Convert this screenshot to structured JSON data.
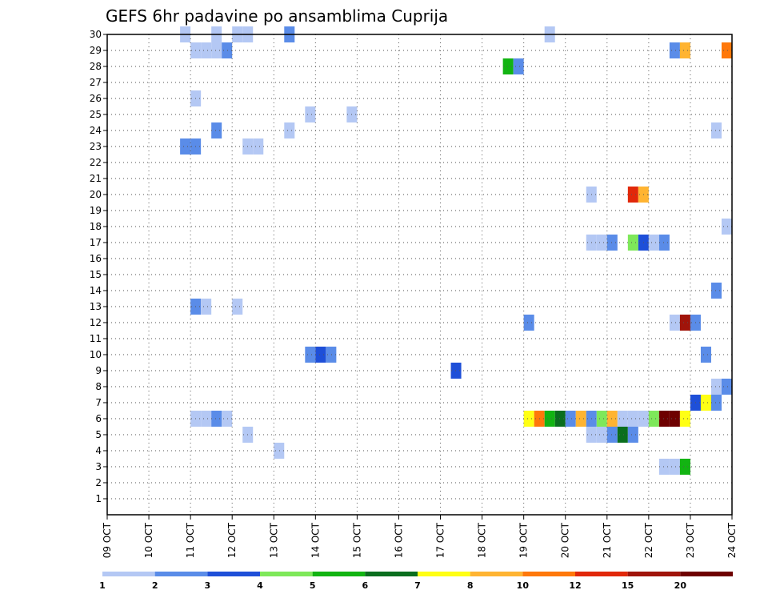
{
  "chart_data": {
    "type": "heatmap",
    "title": "GEFS 6hr padavine po ansamblima Cuprija",
    "xlabel": "",
    "ylabel": "",
    "x_tick_labels": [
      "09 OCT",
      "10 OCT",
      "11 OCT",
      "12 OCT",
      "13 OCT",
      "14 OCT",
      "15 OCT",
      "16 OCT",
      "17 OCT",
      "18 OCT",
      "19 OCT",
      "20 OCT",
      "21 OCT",
      "22 OCT",
      "23 OCT",
      "24 OCT"
    ],
    "x_range_days": [
      0,
      15
    ],
    "y_tick_labels": [
      1,
      2,
      3,
      4,
      5,
      6,
      7,
      8,
      9,
      10,
      11,
      12,
      13,
      14,
      15,
      16,
      17,
      18,
      19,
      20,
      21,
      22,
      23,
      24,
      25,
      26,
      27,
      28,
      29,
      30
    ],
    "y_range": [
      0,
      30
    ],
    "time_step_hours": 6,
    "grid": "dotted",
    "legend": {
      "placement": "bottom",
      "labels": [
        "1",
        "2",
        "3",
        "4",
        "5",
        "6",
        "7",
        "8",
        "10",
        "12",
        "15",
        "20"
      ],
      "colors": [
        "#b4c8f4",
        "#5a8ce8",
        "#1e4fd8",
        "#7ee85a",
        "#12b412",
        "#0a6e1e",
        "#ffff14",
        "#ffb432",
        "#ff780a",
        "#e1280a",
        "#a0140a",
        "#6e0000"
      ]
    },
    "cells": [
      {
        "day": 2.0,
        "member": 30,
        "bin": 1
      },
      {
        "day": 2.75,
        "member": 30,
        "bin": 1
      },
      {
        "day": 3.25,
        "member": 30,
        "bin": 1
      },
      {
        "day": 3.5,
        "member": 30,
        "bin": 1
      },
      {
        "day": 4.5,
        "member": 30,
        "bin": 2
      },
      {
        "day": 10.75,
        "member": 30,
        "bin": 1
      },
      {
        "day": 2.25,
        "member": 29,
        "bin": 1
      },
      {
        "day": 2.5,
        "member": 29,
        "bin": 1
      },
      {
        "day": 2.75,
        "member": 29,
        "bin": 1
      },
      {
        "day": 3.0,
        "member": 29,
        "bin": 2
      },
      {
        "day": 13.75,
        "member": 29,
        "bin": 2
      },
      {
        "day": 14.0,
        "member": 29,
        "bin": 8
      },
      {
        "day": 15.0,
        "member": 29,
        "bin": 9
      },
      {
        "day": 9.75,
        "member": 28,
        "bin": 5
      },
      {
        "day": 10.0,
        "member": 28,
        "bin": 2
      },
      {
        "day": 2.25,
        "member": 26,
        "bin": 1
      },
      {
        "day": 5.0,
        "member": 25,
        "bin": 1
      },
      {
        "day": 6.0,
        "member": 25,
        "bin": 1
      },
      {
        "day": 2.75,
        "member": 24,
        "bin": 2
      },
      {
        "day": 4.5,
        "member": 24,
        "bin": 1
      },
      {
        "day": 14.75,
        "member": 24,
        "bin": 1
      },
      {
        "day": 2.0,
        "member": 23,
        "bin": 2
      },
      {
        "day": 2.25,
        "member": 23,
        "bin": 2
      },
      {
        "day": 3.5,
        "member": 23,
        "bin": 1
      },
      {
        "day": 3.75,
        "member": 23,
        "bin": 1
      },
      {
        "day": 11.75,
        "member": 20,
        "bin": 1
      },
      {
        "day": 12.75,
        "member": 20,
        "bin": 10
      },
      {
        "day": 13.0,
        "member": 20,
        "bin": 8
      },
      {
        "day": 15.0,
        "member": 18,
        "bin": 1
      },
      {
        "day": 11.75,
        "member": 17,
        "bin": 1
      },
      {
        "day": 12.0,
        "member": 17,
        "bin": 1
      },
      {
        "day": 12.25,
        "member": 17,
        "bin": 2
      },
      {
        "day": 12.75,
        "member": 17,
        "bin": 4
      },
      {
        "day": 13.0,
        "member": 17,
        "bin": 3
      },
      {
        "day": 13.25,
        "member": 17,
        "bin": 1
      },
      {
        "day": 13.5,
        "member": 17,
        "bin": 2
      },
      {
        "day": 14.75,
        "member": 14,
        "bin": 2
      },
      {
        "day": 2.25,
        "member": 13,
        "bin": 2
      },
      {
        "day": 2.5,
        "member": 13,
        "bin": 1
      },
      {
        "day": 3.25,
        "member": 13,
        "bin": 1
      },
      {
        "day": 10.25,
        "member": 12,
        "bin": 2
      },
      {
        "day": 13.75,
        "member": 12,
        "bin": 1
      },
      {
        "day": 14.0,
        "member": 12,
        "bin": 11
      },
      {
        "day": 14.25,
        "member": 12,
        "bin": 2
      },
      {
        "day": 5.0,
        "member": 10,
        "bin": 2
      },
      {
        "day": 5.25,
        "member": 10,
        "bin": 3
      },
      {
        "day": 5.5,
        "member": 10,
        "bin": 2
      },
      {
        "day": 14.5,
        "member": 10,
        "bin": 2
      },
      {
        "day": 8.5,
        "member": 9,
        "bin": 3
      },
      {
        "day": 14.75,
        "member": 8,
        "bin": 1
      },
      {
        "day": 15.0,
        "member": 8,
        "bin": 2
      },
      {
        "day": 14.25,
        "member": 7,
        "bin": 3
      },
      {
        "day": 14.5,
        "member": 7,
        "bin": 7
      },
      {
        "day": 14.75,
        "member": 7,
        "bin": 2
      },
      {
        "day": 2.25,
        "member": 6,
        "bin": 1
      },
      {
        "day": 2.5,
        "member": 6,
        "bin": 1
      },
      {
        "day": 2.75,
        "member": 6,
        "bin": 2
      },
      {
        "day": 3.0,
        "member": 6,
        "bin": 1
      },
      {
        "day": 10.25,
        "member": 6,
        "bin": 7
      },
      {
        "day": 10.5,
        "member": 6,
        "bin": 9
      },
      {
        "day": 10.75,
        "member": 6,
        "bin": 5
      },
      {
        "day": 11.0,
        "member": 6,
        "bin": 6
      },
      {
        "day": 11.25,
        "member": 6,
        "bin": 2
      },
      {
        "day": 11.5,
        "member": 6,
        "bin": 8
      },
      {
        "day": 11.75,
        "member": 6,
        "bin": 2
      },
      {
        "day": 12.0,
        "member": 6,
        "bin": 4
      },
      {
        "day": 12.25,
        "member": 6,
        "bin": 8
      },
      {
        "day": 12.5,
        "member": 6,
        "bin": 1
      },
      {
        "day": 12.75,
        "member": 6,
        "bin": 1
      },
      {
        "day": 13.0,
        "member": 6,
        "bin": 1
      },
      {
        "day": 13.25,
        "member": 6,
        "bin": 4
      },
      {
        "day": 13.5,
        "member": 6,
        "bin": 12
      },
      {
        "day": 13.75,
        "member": 6,
        "bin": 12
      },
      {
        "day": 14.0,
        "member": 6,
        "bin": 7
      },
      {
        "day": 3.5,
        "member": 5,
        "bin": 1
      },
      {
        "day": 11.75,
        "member": 5,
        "bin": 1
      },
      {
        "day": 12.0,
        "member": 5,
        "bin": 1
      },
      {
        "day": 12.25,
        "member": 5,
        "bin": 2
      },
      {
        "day": 12.5,
        "member": 5,
        "bin": 6
      },
      {
        "day": 12.75,
        "member": 5,
        "bin": 2
      },
      {
        "day": 4.25,
        "member": 4,
        "bin": 1
      },
      {
        "day": 13.5,
        "member": 3,
        "bin": 1
      },
      {
        "day": 13.75,
        "member": 3,
        "bin": 1
      },
      {
        "day": 14.0,
        "member": 3,
        "bin": 5
      }
    ]
  }
}
